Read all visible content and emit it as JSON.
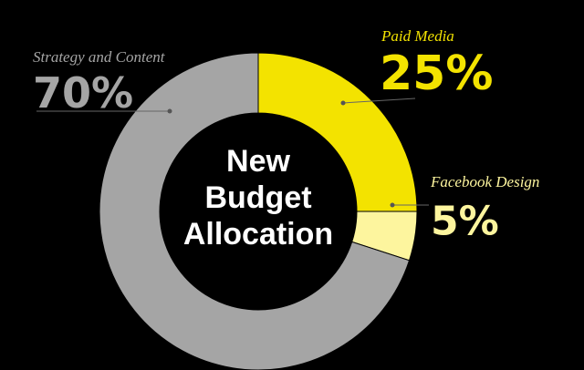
{
  "chart_data": {
    "type": "donut",
    "title_lines": [
      "New",
      "Budget",
      "Allocation"
    ],
    "categories": [
      "Paid Media",
      "Facebook Design",
      "Strategy and Content"
    ],
    "values": [
      25,
      5,
      70
    ],
    "value_labels": [
      "25%",
      "5%",
      "70%"
    ],
    "colors": [
      "#f3e300",
      "#fdf59e",
      "#a5a5a5"
    ]
  }
}
